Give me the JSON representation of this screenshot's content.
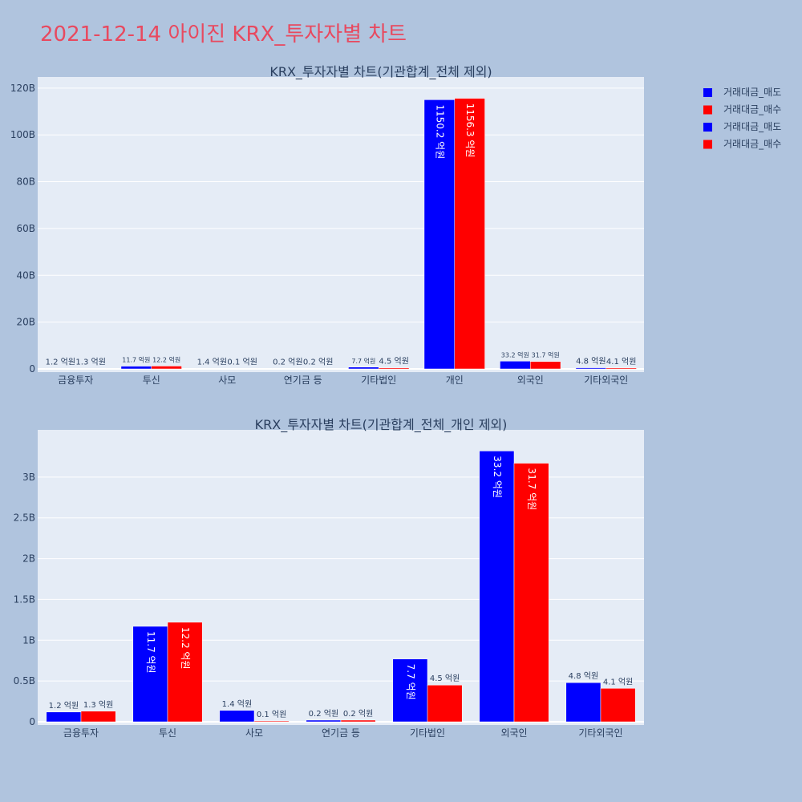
{
  "page": {
    "title": "2021-12-14 아이진 KRX_투자자별 차트"
  },
  "legend": [
    {
      "label": "거래대금_매도",
      "color": "#0000ff"
    },
    {
      "label": "거래대금_매수",
      "color": "#ff0000"
    },
    {
      "label": "거래대금_매도",
      "color": "#0000ff"
    },
    {
      "label": "거래대금_매수",
      "color": "#ff0000"
    }
  ],
  "colors": {
    "sell": "#0000ff",
    "buy": "#ff0000",
    "plot_bg": "#e5ecf6",
    "page_bg": "#b0c4de",
    "title": "#e8495f"
  },
  "chart_data": [
    {
      "type": "bar",
      "title": "KRX_투자자별 차트(기관합계_전체 제외)",
      "categories": [
        "금융투자",
        "투신",
        "사모",
        "연기금 등",
        "기타법인",
        "개인",
        "외국인",
        "기타외국인"
      ],
      "series": [
        {
          "name": "거래대금_매도",
          "color": "#0000ff",
          "values": [
            0.12,
            1.17,
            0.14,
            0.02,
            0.77,
            115.02,
            3.32,
            0.48
          ],
          "labels": [
            "1.2 억원",
            "11.7 억원",
            "1.4 억원",
            "0.2 억원",
            "7.7 억원",
            "1150.2 억원",
            "33.2 억원",
            "4.8 억원"
          ]
        },
        {
          "name": "거래대금_매수",
          "color": "#ff0000",
          "values": [
            0.13,
            1.22,
            0.01,
            0.02,
            0.45,
            115.63,
            3.17,
            0.41
          ],
          "labels": [
            "1.3 억원",
            "12.2 억원",
            "0.1 억원",
            "0.2 억원",
            "4.5 억원",
            "1156.3 억원",
            "31.7 억원",
            "4.1 억원"
          ]
        }
      ],
      "ylim": [
        0,
        122
      ],
      "yticks": [
        0,
        20,
        40,
        60,
        80,
        100,
        120
      ],
      "ytick_labels": [
        "0",
        "20B",
        "40B",
        "60B",
        "80B",
        "100B",
        "120B"
      ],
      "grid": true
    },
    {
      "type": "bar",
      "title": "KRX_투자자별 차트(기관합계_전체_개인 제외)",
      "categories": [
        "금융투자",
        "투신",
        "사모",
        "연기금 등",
        "기타법인",
        "외국인",
        "기타외국인"
      ],
      "series": [
        {
          "name": "거래대금_매도",
          "color": "#0000ff",
          "values": [
            0.12,
            1.17,
            0.14,
            0.02,
            0.77,
            3.32,
            0.48
          ],
          "labels": [
            "1.2 억원",
            "11.7 억원",
            "1.4 억원",
            "0.2 억원",
            "7.7 억원",
            "33.2 억원",
            "4.8 억원"
          ]
        },
        {
          "name": "거래대금_매수",
          "color": "#ff0000",
          "values": [
            0.13,
            1.22,
            0.01,
            0.02,
            0.45,
            3.17,
            0.41
          ],
          "labels": [
            "1.3 억원",
            "12.2 억원",
            "0.1 억원",
            "0.2 억원",
            "4.5 억원",
            "31.7 억원",
            "4.1 억원"
          ]
        }
      ],
      "ylim": [
        0,
        3.5
      ],
      "yticks": [
        0,
        0.5,
        1,
        1.5,
        2,
        2.5,
        3
      ],
      "ytick_labels": [
        "0",
        "0.5B",
        "1B",
        "1.5B",
        "2B",
        "2.5B",
        "3B"
      ],
      "grid": true
    }
  ]
}
